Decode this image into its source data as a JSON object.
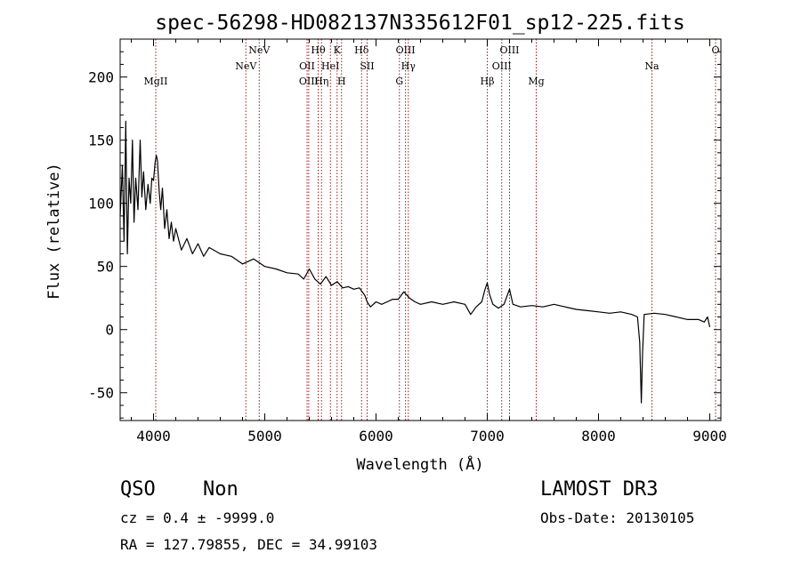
{
  "chart_data": {
    "type": "line",
    "title": "spec-56298-HD082137N335612F01_sp12-225.fits",
    "xlabel": "Wavelength (Å)",
    "ylabel": "Flux (relative)",
    "xlim": [
      3700,
      9100
    ],
    "ylim": [
      -72,
      230
    ],
    "x_ticks": [
      4000,
      5000,
      6000,
      7000,
      8000,
      9000
    ],
    "y_ticks": [
      -50,
      0,
      50,
      100,
      150,
      200
    ],
    "grid": false,
    "line_color": "#000000",
    "marker_color": "#a01818",
    "series": [
      {
        "values": [
          [
            3700,
            90
          ],
          [
            3720,
            130
          ],
          [
            3735,
            70
          ],
          [
            3750,
            165
          ],
          [
            3765,
            60
          ],
          [
            3780,
            120
          ],
          [
            3795,
            100
          ],
          [
            3810,
            150
          ],
          [
            3825,
            85
          ],
          [
            3840,
            120
          ],
          [
            3860,
            95
          ],
          [
            3880,
            150
          ],
          [
            3895,
            105
          ],
          [
            3910,
            125
          ],
          [
            3930,
            95
          ],
          [
            3950,
            115
          ],
          [
            3970,
            100
          ],
          [
            3985,
            120
          ],
          [
            4000,
            118
          ],
          [
            4015,
            133
          ],
          [
            4025,
            138
          ],
          [
            4035,
            134
          ],
          [
            4050,
            110
          ],
          [
            4065,
            95
          ],
          [
            4080,
            112
          ],
          [
            4100,
            80
          ],
          [
            4120,
            95
          ],
          [
            4140,
            72
          ],
          [
            4160,
            85
          ],
          [
            4180,
            70
          ],
          [
            4200,
            80
          ],
          [
            4250,
            63
          ],
          [
            4300,
            72
          ],
          [
            4350,
            60
          ],
          [
            4400,
            68
          ],
          [
            4450,
            58
          ],
          [
            4500,
            65
          ],
          [
            4600,
            60
          ],
          [
            4700,
            58
          ],
          [
            4800,
            52
          ],
          [
            4900,
            56
          ],
          [
            5000,
            50
          ],
          [
            5100,
            48
          ],
          [
            5200,
            45
          ],
          [
            5300,
            44
          ],
          [
            5350,
            40
          ],
          [
            5400,
            48
          ],
          [
            5450,
            40
          ],
          [
            5500,
            36
          ],
          [
            5550,
            42
          ],
          [
            5600,
            35
          ],
          [
            5650,
            38
          ],
          [
            5700,
            33
          ],
          [
            5750,
            34
          ],
          [
            5800,
            32
          ],
          [
            5850,
            33
          ],
          [
            5900,
            27
          ],
          [
            5920,
            22
          ],
          [
            5950,
            18
          ],
          [
            6000,
            22
          ],
          [
            6050,
            20
          ],
          [
            6100,
            22
          ],
          [
            6150,
            24
          ],
          [
            6200,
            24
          ],
          [
            6250,
            30
          ],
          [
            6300,
            25
          ],
          [
            6350,
            22
          ],
          [
            6400,
            20
          ],
          [
            6500,
            22
          ],
          [
            6600,
            20
          ],
          [
            6700,
            22
          ],
          [
            6800,
            20
          ],
          [
            6850,
            12
          ],
          [
            6900,
            18
          ],
          [
            6950,
            22
          ],
          [
            6980,
            32
          ],
          [
            7000,
            37
          ],
          [
            7020,
            28
          ],
          [
            7050,
            20
          ],
          [
            7100,
            17
          ],
          [
            7150,
            20
          ],
          [
            7200,
            32
          ],
          [
            7230,
            20
          ],
          [
            7300,
            18
          ],
          [
            7400,
            19
          ],
          [
            7500,
            18
          ],
          [
            7600,
            20
          ],
          [
            7700,
            18
          ],
          [
            7800,
            16
          ],
          [
            7900,
            15
          ],
          [
            8000,
            14
          ],
          [
            8100,
            13
          ],
          [
            8200,
            14
          ],
          [
            8300,
            12
          ],
          [
            8350,
            10
          ],
          [
            8370,
            -10
          ],
          [
            8385,
            -58
          ],
          [
            8395,
            -20
          ],
          [
            8410,
            12
          ],
          [
            8500,
            13
          ],
          [
            8600,
            12
          ],
          [
            8700,
            10
          ],
          [
            8800,
            8
          ],
          [
            8900,
            8
          ],
          [
            8950,
            6
          ],
          [
            8980,
            10
          ],
          [
            9000,
            2
          ]
        ]
      }
    ],
    "line_markers": [
      {
        "x": 4020,
        "label": "MgII",
        "row": 3
      },
      {
        "x": 4830,
        "label": "NeV",
        "row": 2
      },
      {
        "x": 4950,
        "label": "NeV",
        "row": 1
      },
      {
        "x": 5380,
        "label": "OII",
        "row": 2
      },
      {
        "x": 5395,
        "label": "OIII",
        "row": 3
      },
      {
        "x": 5480,
        "label": "Hθ",
        "row": 1
      },
      {
        "x": 5510,
        "label": "Hη",
        "row": 3
      },
      {
        "x": 5590,
        "label": "HeI",
        "row": 2
      },
      {
        "x": 5650,
        "label": "K",
        "row": 1
      },
      {
        "x": 5690,
        "label": "H",
        "row": 3
      },
      {
        "x": 5870,
        "label": "Hδ",
        "row": 1
      },
      {
        "x": 5920,
        "label": "SII",
        "row": 2
      },
      {
        "x": 6210,
        "label": "G",
        "row": 3
      },
      {
        "x": 6265,
        "label": "OIII",
        "row": 1
      },
      {
        "x": 6290,
        "label": "Hγ",
        "row": 2
      },
      {
        "x": 7000,
        "label": "Hβ",
        "row": 3
      },
      {
        "x": 7130,
        "label": "OIII",
        "row": 2
      },
      {
        "x": 7200,
        "label": "OIII",
        "row": 1
      },
      {
        "x": 7440,
        "label": "Mg",
        "row": 3
      },
      {
        "x": 8480,
        "label": "Na",
        "row": 2
      },
      {
        "x": 9100,
        "label": "O",
        "row": 1
      }
    ]
  },
  "info": {
    "class": "QSO",
    "subclass": "Non",
    "survey": "LAMOST DR3",
    "redshift": "cz = 0.4 ± -9999.0",
    "obs_date": "Obs-Date: 20130105",
    "coords": "RA = 127.79855, DEC =  34.99103"
  }
}
